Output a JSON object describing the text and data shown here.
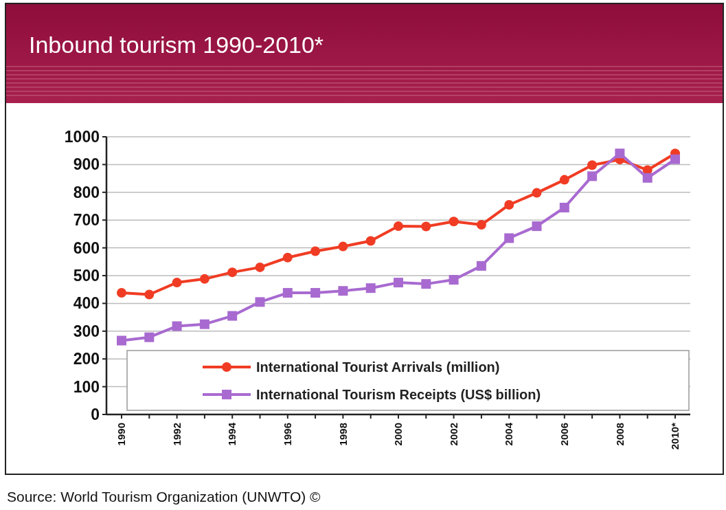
{
  "chart_data": {
    "type": "line",
    "title": "Inbound tourism 1990-2010*",
    "categories": [
      "1990",
      null,
      "1992",
      null,
      "1994",
      null,
      "1996",
      null,
      "1998",
      null,
      "2000",
      null,
      "2002",
      null,
      "2004",
      null,
      "2006",
      null,
      "2008",
      null,
      "2010*"
    ],
    "series": [
      {
        "name": "International Tourist Arrivals (million)",
        "color": "#f03c24",
        "marker": "circle",
        "values": [
          438,
          432,
          475,
          488,
          512,
          530,
          565,
          588,
          605,
          625,
          678,
          677,
          695,
          683,
          755,
          798,
          845,
          898,
          918,
          880,
          940
        ]
      },
      {
        "name": "International Tourism Receipts (US$ billion)",
        "color": "#a86ad0",
        "marker": "square",
        "values": [
          266,
          278,
          318,
          325,
          355,
          405,
          438,
          438,
          445,
          455,
          475,
          470,
          485,
          535,
          635,
          678,
          745,
          858,
          940,
          852,
          919
        ]
      }
    ],
    "ylim": [
      0,
      1000
    ],
    "yticks": [
      0,
      100,
      200,
      300,
      400,
      500,
      600,
      700,
      800,
      900,
      1000
    ],
    "grid": "y",
    "legend": "bottom right",
    "annotations": [
      "Source: World Tourism Organization (UNWTO) ©"
    ]
  }
}
